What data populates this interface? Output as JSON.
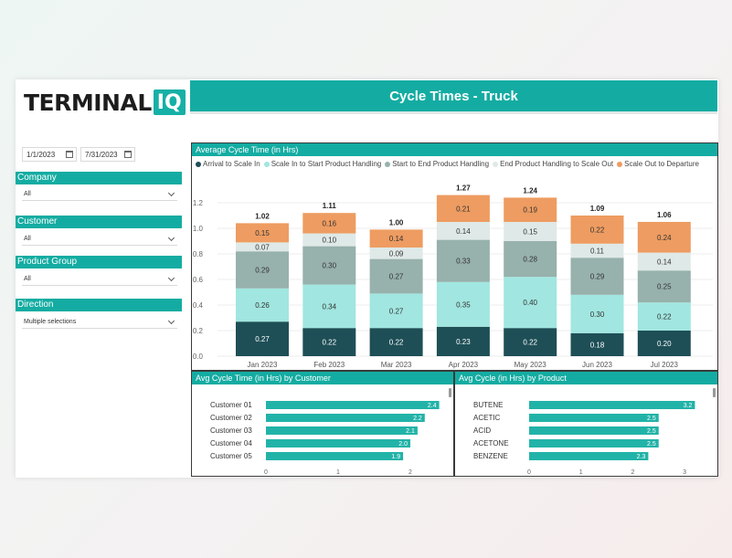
{
  "logo": {
    "text": "TERMINAL",
    "badge": "IQ"
  },
  "title": "Cycle Times - Truck",
  "dates": {
    "start": "1/1/2023",
    "end": "7/31/2023"
  },
  "slicers": [
    {
      "label": "Company",
      "value": "All"
    },
    {
      "label": "Customer",
      "value": "All"
    },
    {
      "label": "Product Group",
      "value": "All"
    },
    {
      "label": "Direction",
      "value": "Multiple selections"
    }
  ],
  "colors": {
    "accent": "#14aca2",
    "arrival": "#1e4f57",
    "scale_in": "#a1e6e0",
    "start_end": "#97b1ac",
    "end_scale": "#dfe9e7",
    "scale_out": "#ee9c61",
    "bar_h": "#22b3a8"
  },
  "main_chart": {
    "title": "Average Cycle Time (in Hrs)",
    "chart_data": {
      "type": "bar",
      "stacked": true,
      "categories": [
        "Jan 2023",
        "Feb 2023",
        "Mar 2023",
        "Apr 2023",
        "May 2023",
        "Jun 2023",
        "Jul 2023"
      ],
      "series": [
        {
          "name": "Arrival to Scale In",
          "values": [
            0.27,
            0.22,
            0.22,
            0.23,
            0.22,
            0.18,
            0.2
          ]
        },
        {
          "name": "Scale In to Start Product Handling",
          "values": [
            0.26,
            0.34,
            0.27,
            0.35,
            0.4,
            0.3,
            0.22
          ]
        },
        {
          "name": "Start to End Product Handling",
          "values": [
            0.29,
            0.3,
            0.27,
            0.33,
            0.28,
            0.29,
            0.25
          ]
        },
        {
          "name": "End Product Handling to Scale Out",
          "values": [
            0.07,
            0.1,
            0.09,
            0.14,
            0.15,
            0.11,
            0.14
          ]
        },
        {
          "name": "Scale Out to Departure",
          "values": [
            0.15,
            0.16,
            0.14,
            0.21,
            0.19,
            0.22,
            0.24
          ]
        }
      ],
      "totals": [
        1.02,
        1.11,
        1.0,
        1.27,
        1.24,
        1.09,
        1.06
      ],
      "yticks": [
        "0.0",
        "0.2",
        "0.4",
        "0.6",
        "0.8",
        "1.0",
        "1.2"
      ],
      "ylim": [
        0,
        1.3
      ],
      "legend_position": "top-left"
    }
  },
  "customer_chart": {
    "title": "Avg Cycle Time (in Hrs) by Customer",
    "chart_data": {
      "type": "bar",
      "orientation": "horizontal",
      "categories": [
        "Customer 01",
        "Customer 02",
        "Customer 03",
        "Customer 04",
        "Customer 05"
      ],
      "values": [
        2.4,
        2.2,
        2.1,
        2.0,
        1.9
      ],
      "labels": [
        "2.4",
        "2.2",
        "2.1",
        "2.0",
        "1.9"
      ],
      "xticks": [
        "0",
        "1",
        "2"
      ],
      "xlim": [
        0,
        2.4
      ]
    }
  },
  "product_chart": {
    "title": "Avg Cycle (in Hrs) by Product",
    "chart_data": {
      "type": "bar",
      "orientation": "horizontal",
      "categories": [
        "BUTENE",
        "ACETIC",
        "ACID",
        "ACETONE",
        "BENZENE"
      ],
      "values": [
        3.2,
        2.5,
        2.5,
        2.5,
        2.3
      ],
      "labels": [
        "3.2",
        "2.5",
        "2.5",
        "2.5",
        "2.3"
      ],
      "xticks": [
        "0",
        "1",
        "2",
        "3"
      ],
      "xlim": [
        0,
        3.2
      ]
    }
  }
}
